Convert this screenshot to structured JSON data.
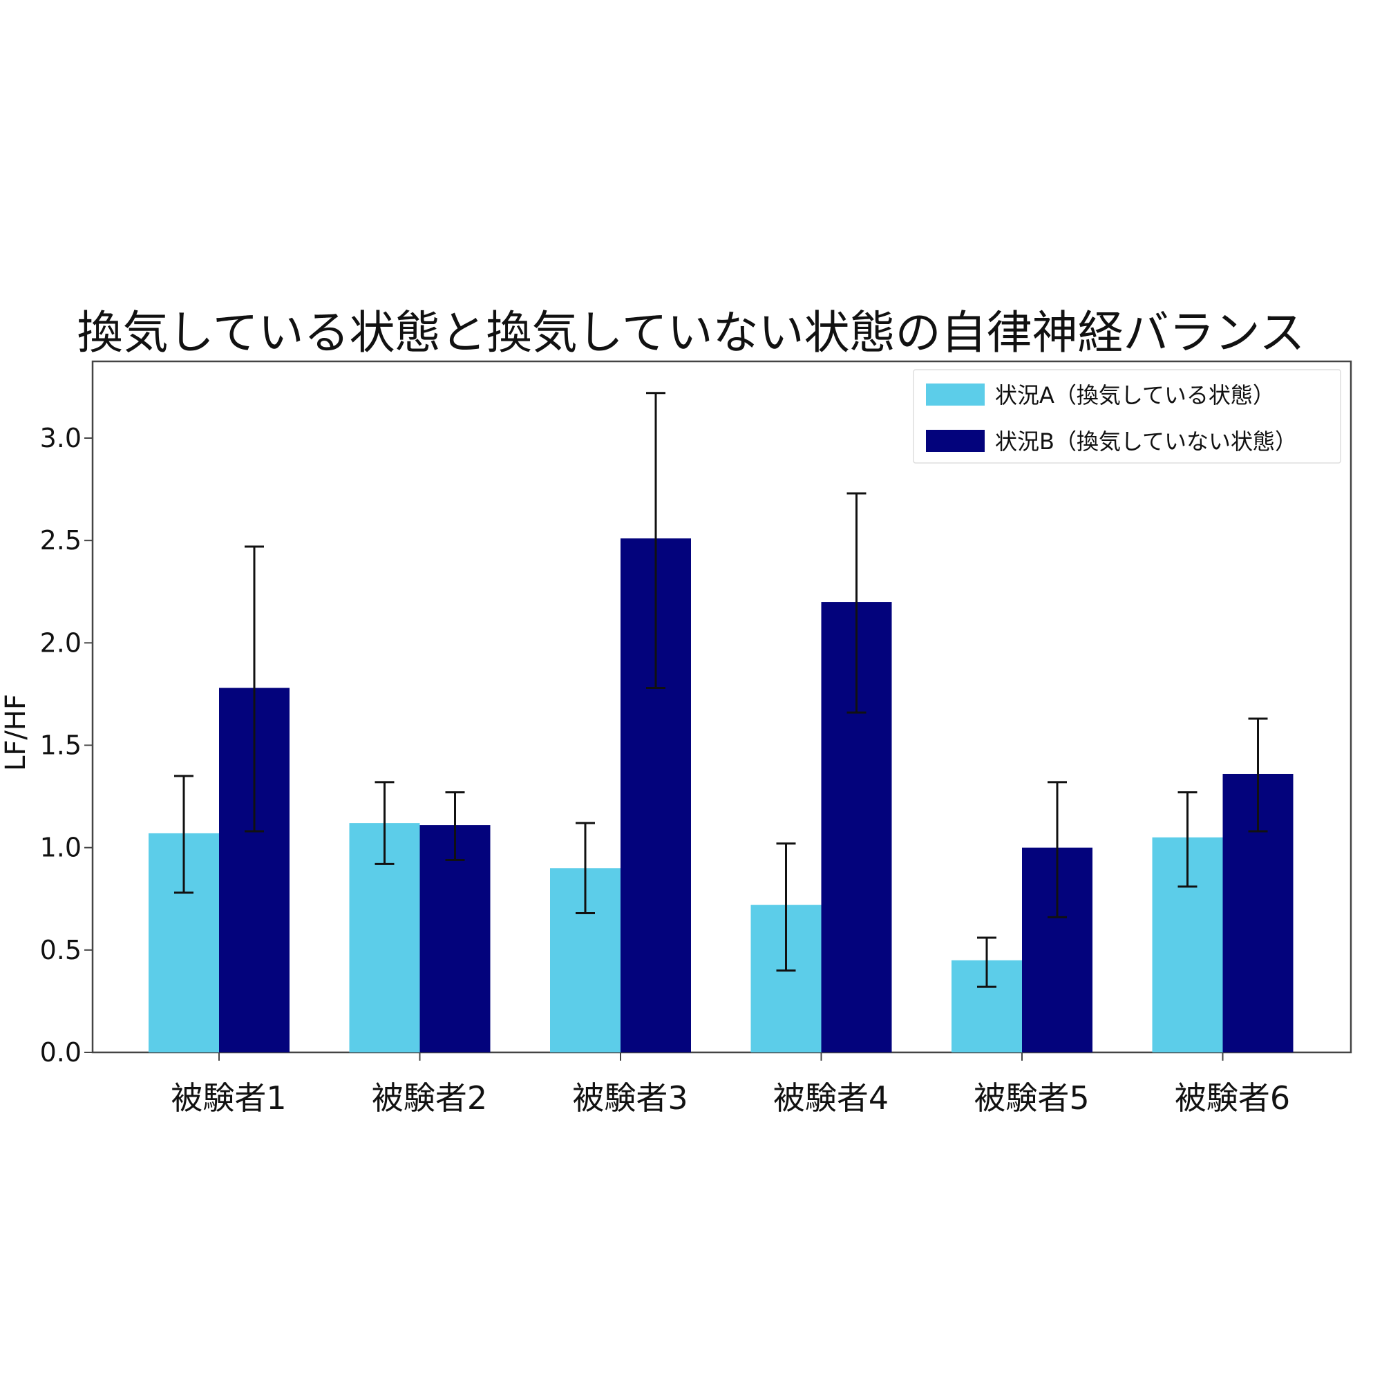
{
  "chart_data": {
    "type": "bar",
    "title": "換気している状態と換気していない状態の自律神経バランス",
    "xlabel": "",
    "ylabel": "LF/HF",
    "categories": [
      "被験者1",
      "被験者2",
      "被験者3",
      "被験者4",
      "被験者5",
      "被験者6"
    ],
    "ylim": [
      0,
      3.3
    ],
    "yticks": [
      0.0,
      0.5,
      1.0,
      1.5,
      2.0,
      2.5,
      3.0
    ],
    "ytick_labels": [
      "0.0",
      "0.5",
      "1.0",
      "1.5",
      "2.0",
      "2.5",
      "3.0"
    ],
    "grid": false,
    "legend_position": "top-right",
    "series": [
      {
        "name": "状況A（換気している状態）",
        "color": "#5ccde9",
        "values": [
          1.07,
          1.12,
          0.9,
          0.72,
          0.45,
          1.05
        ],
        "error_low": [
          0.78,
          0.92,
          0.68,
          0.4,
          0.32,
          0.81
        ],
        "error_high": [
          1.35,
          1.32,
          1.12,
          1.02,
          0.56,
          1.27
        ]
      },
      {
        "name": "状況B（換気していない状態）",
        "color": "#03037c",
        "values": [
          1.78,
          1.11,
          2.51,
          2.2,
          1.0,
          1.36
        ],
        "error_low": [
          1.08,
          0.94,
          1.78,
          1.66,
          0.66,
          1.08
        ],
        "error_high": [
          2.47,
          1.27,
          3.22,
          2.73,
          1.32,
          1.63
        ]
      }
    ]
  }
}
